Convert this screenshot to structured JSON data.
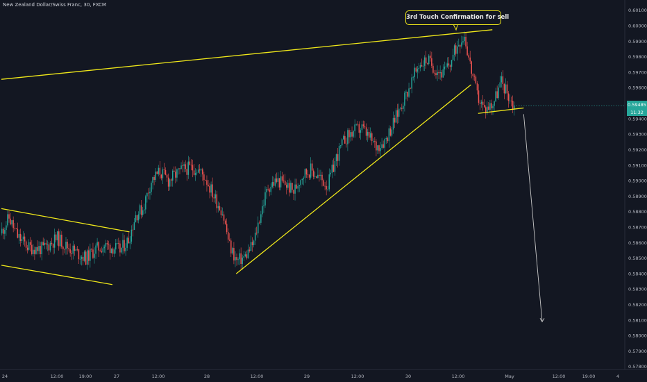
{
  "header": {
    "title": "New Zealand Dollar/Swiss Franc, 30, FXCM"
  },
  "price_label": {
    "price": "0.59485",
    "countdown": "11:32"
  },
  "annotation": {
    "text": "3rd Touch Confirmation for sell"
  },
  "colors": {
    "background": "#131722",
    "up_candle": "#26a69a",
    "down_candle": "#ef5350",
    "trendline": "#f0e81a",
    "arrow": "#c8c8c8",
    "axis_text": "#b2b5be"
  },
  "chart_data": {
    "type": "candlestick",
    "title": "New Zealand Dollar/Swiss Franc, 30, FXCM",
    "ylim": [
      0.5771,
      0.6014
    ],
    "y_ticks": [
      "0.60100",
      "0.60000",
      "0.59900",
      "0.59800",
      "0.59700",
      "0.59600",
      "0.59500",
      "0.59400",
      "0.59300",
      "0.59200",
      "0.59100",
      "0.59000",
      "0.58900",
      "0.58800",
      "0.58700",
      "0.58600",
      "0.58500",
      "0.58400",
      "0.58300",
      "0.58200",
      "0.58100",
      "0.58000",
      "0.57900",
      "0.57800"
    ],
    "x_ticks": [
      "24",
      "12:00",
      "19:00",
      "27",
      "12:00",
      "28",
      "12:00",
      "29",
      "12:00",
      "30",
      "12:00",
      "May",
      "12:00",
      "19:00",
      "4"
    ],
    "waypoints": [
      [
        0,
        0.5866
      ],
      [
        6,
        0.5876
      ],
      [
        12,
        0.5864
      ],
      [
        20,
        0.5857
      ],
      [
        30,
        0.5856
      ],
      [
        40,
        0.5863
      ],
      [
        46,
        0.5858
      ],
      [
        53,
        0.5854
      ],
      [
        60,
        0.585
      ],
      [
        67,
        0.5856
      ],
      [
        73,
        0.5858
      ],
      [
        79,
        0.5857
      ],
      [
        84,
        0.5855
      ],
      [
        90,
        0.5862
      ],
      [
        95,
        0.5878
      ],
      [
        100,
        0.5882
      ],
      [
        106,
        0.59
      ],
      [
        112,
        0.5906
      ],
      [
        118,
        0.59
      ],
      [
        123,
        0.5904
      ],
      [
        130,
        0.5908
      ],
      [
        138,
        0.5908
      ],
      [
        144,
        0.5902
      ],
      [
        150,
        0.589
      ],
      [
        156,
        0.588
      ],
      [
        161,
        0.5858
      ],
      [
        166,
        0.5848
      ],
      [
        172,
        0.5851
      ],
      [
        178,
        0.586
      ],
      [
        183,
        0.588
      ],
      [
        188,
        0.5896
      ],
      [
        194,
        0.59
      ],
      [
        200,
        0.5898
      ],
      [
        206,
        0.5893
      ],
      [
        212,
        0.5904
      ],
      [
        218,
        0.5907
      ],
      [
        224,
        0.5902
      ],
      [
        230,
        0.5897
      ],
      [
        236,
        0.5915
      ],
      [
        242,
        0.5927
      ],
      [
        248,
        0.5932
      ],
      [
        254,
        0.5934
      ],
      [
        258,
        0.5929
      ],
      [
        264,
        0.5922
      ],
      [
        270,
        0.5926
      ],
      [
        276,
        0.5937
      ],
      [
        282,
        0.595
      ],
      [
        288,
        0.5962
      ],
      [
        294,
        0.5975
      ],
      [
        300,
        0.5978
      ],
      [
        306,
        0.5972
      ],
      [
        311,
        0.5969
      ],
      [
        316,
        0.5976
      ],
      [
        322,
        0.599
      ],
      [
        326,
        0.5994
      ],
      [
        330,
        0.5975
      ],
      [
        335,
        0.5955
      ],
      [
        340,
        0.5946
      ],
      [
        346,
        0.595
      ],
      [
        352,
        0.5964
      ],
      [
        356,
        0.5957
      ],
      [
        360,
        0.5949
      ]
    ],
    "last_price": 0.59485,
    "trendlines": [
      {
        "from": [
          0,
          0.59655
        ],
        "to": [
          345,
          0.59975
        ]
      },
      {
        "from": [
          0,
          0.5882
        ],
        "to": [
          90,
          0.5867
        ]
      },
      {
        "from": [
          0,
          0.58455
        ],
        "to": [
          78,
          0.5833
        ]
      },
      {
        "from": [
          165,
          0.584
        ],
        "to": [
          330,
          0.5962
        ]
      },
      {
        "from": [
          335,
          0.59435
        ],
        "to": [
          367,
          0.5947
        ]
      }
    ],
    "projection_arrow": {
      "from": [
        367,
        0.5943
      ],
      "to": [
        380,
        0.5809
      ]
    }
  }
}
